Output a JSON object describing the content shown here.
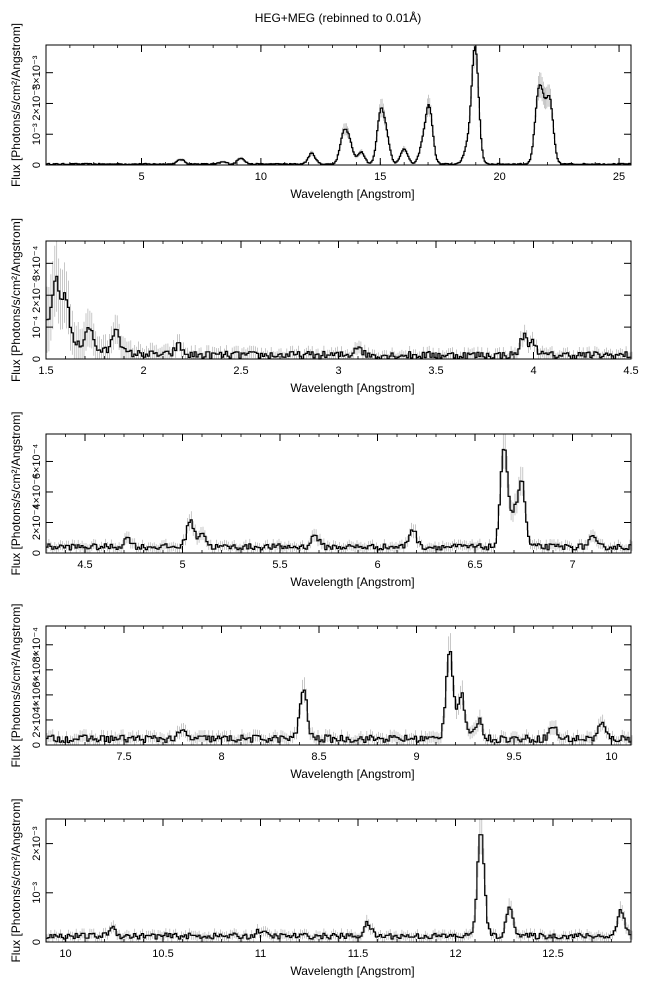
{
  "title": "HEG+MEG (rebinned to 0.01Å)",
  "xlabel": "Wavelength [Angstrom]",
  "ylabel": "Flux [Photons/s/cm²/Angstrom]",
  "chart_data": [
    {
      "type": "line",
      "xlim": [
        1,
        25.5
      ],
      "ylim": [
        0,
        0.0039
      ],
      "xticks": [
        5,
        10,
        15,
        20,
        25
      ],
      "yticks": [
        0,
        0.001,
        0.002,
        0.003
      ],
      "ytick_labels": [
        "0",
        "10⁻³",
        "2×10⁻³",
        "3×10⁻³"
      ],
      "noise": 2e-05,
      "base": 3e-05,
      "lines": [
        [
          6.65,
          0.00015
        ],
        [
          8.42,
          7e-05
        ],
        [
          9.17,
          0.0002
        ],
        [
          12.13,
          0.00035
        ],
        [
          13.45,
          0.0009
        ],
        [
          13.7,
          0.0007
        ],
        [
          14.2,
          0.0004
        ],
        [
          15.01,
          0.0016
        ],
        [
          15.26,
          0.0008
        ],
        [
          16.0,
          0.0005
        ],
        [
          16.78,
          0.0006
        ],
        [
          17.05,
          0.0018
        ],
        [
          18.63,
          0.0005
        ],
        [
          18.97,
          0.0038
        ],
        [
          21.6,
          0.0018
        ],
        [
          21.8,
          0.0014
        ],
        [
          22.1,
          0.002
        ]
      ],
      "step": 0.05
    },
    {
      "type": "line",
      "xlim": [
        1.5,
        4.5
      ],
      "ylim": [
        0,
        0.00037
      ],
      "xticks": [
        1.5,
        2,
        2.5,
        3,
        3.5,
        4,
        4.5
      ],
      "yticks": [
        0,
        0.0001,
        0.0002,
        0.0003
      ],
      "ytick_labels": [
        "0",
        "10⁻⁴",
        "2×10⁻⁴",
        "3×10⁻⁴"
      ],
      "noise": 1.2e-05,
      "base": 1.2e-05,
      "lines": [
        [
          1.55,
          0.00017
        ],
        [
          1.6,
          0.00014
        ],
        [
          1.72,
          7e-05
        ],
        [
          1.86,
          8e-05
        ],
        [
          2.18,
          3e-05
        ],
        [
          3.1,
          3e-05
        ],
        [
          3.95,
          6e-05
        ],
        [
          4.0,
          4e-05
        ]
      ],
      "step": 0.01
    },
    {
      "type": "line",
      "xlim": [
        4.3,
        7.3
      ],
      "ylim": [
        0,
        0.00078
      ],
      "xticks": [
        4.5,
        5,
        5.5,
        6,
        6.5,
        7
      ],
      "yticks": [
        0,
        0.0002,
        0.0004,
        0.0006
      ],
      "ytick_labels": [
        "0",
        "2×10⁻⁴",
        "4×10⁻⁴",
        "6×10⁻⁴"
      ],
      "noise": 2e-05,
      "base": 4e-05,
      "lines": [
        [
          4.72,
          6e-05
        ],
        [
          5.04,
          0.00018
        ],
        [
          5.1,
          0.0001
        ],
        [
          5.68,
          8e-05
        ],
        [
          6.18,
          0.00012
        ],
        [
          6.65,
          0.00067
        ],
        [
          6.7,
          0.0002
        ],
        [
          6.74,
          0.00042
        ],
        [
          7.1,
          6e-05
        ]
      ],
      "step": 0.01
    },
    {
      "type": "line",
      "xlim": [
        7.1,
        10.1
      ],
      "ylim": [
        0,
        0.00095
      ],
      "xticks": [
        7.5,
        8,
        8.5,
        9,
        9.5,
        10
      ],
      "yticks": [
        0,
        0.0002,
        0.0004,
        0.0006,
        0.0008
      ],
      "ytick_labels": [
        "0",
        "2×10⁻⁴",
        "4×10⁻⁴",
        "6×10⁻⁴",
        "8×10⁻⁴"
      ],
      "noise": 3e-05,
      "base": 5e-05,
      "lines": [
        [
          7.8,
          6e-05
        ],
        [
          8.42,
          0.0004
        ],
        [
          9.17,
          0.00072
        ],
        [
          9.23,
          0.00035
        ],
        [
          9.32,
          0.00015
        ],
        [
          9.7,
          0.0001
        ],
        [
          9.95,
          0.00012
        ]
      ],
      "step": 0.01
    },
    {
      "type": "line",
      "xlim": [
        9.9,
        12.9
      ],
      "ylim": [
        0,
        0.0025
      ],
      "xticks": [
        10,
        10.5,
        11,
        11.5,
        12,
        12.5
      ],
      "yticks": [
        0,
        0.001,
        0.002
      ],
      "ytick_labels": [
        "0",
        "10⁻³",
        "2×10⁻³"
      ],
      "noise": 6e-05,
      "base": 0.00012,
      "lines": [
        [
          10.24,
          0.00018
        ],
        [
          11.0,
          0.00012
        ],
        [
          11.55,
          0.00025
        ],
        [
          12.13,
          0.0021
        ],
        [
          12.28,
          0.0006
        ],
        [
          12.85,
          0.00055
        ]
      ],
      "step": 0.01
    }
  ]
}
